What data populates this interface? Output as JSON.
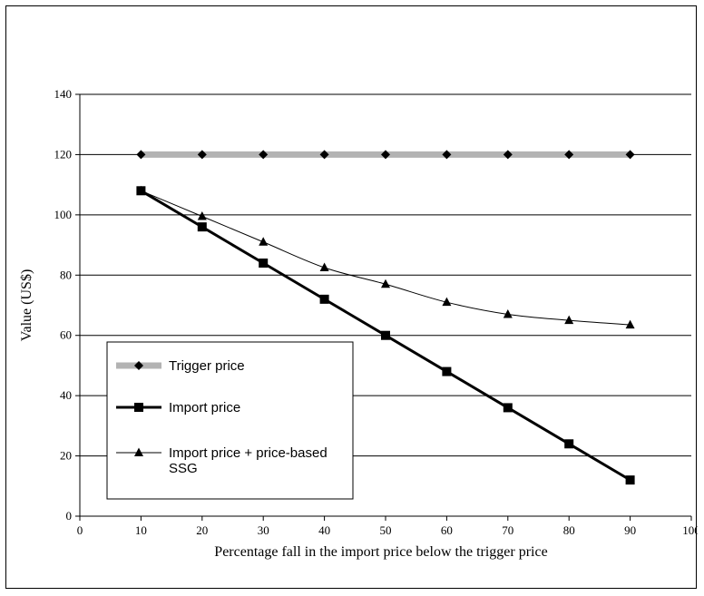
{
  "chart_data": {
    "type": "line",
    "title": "",
    "xlabel": "Percentage fall in the import price below the trigger price",
    "ylabel": "Value (US$)",
    "xlim": [
      0,
      100
    ],
    "ylim": [
      0,
      140
    ],
    "x_ticks": [
      0,
      10,
      20,
      30,
      40,
      50,
      60,
      70,
      80,
      90,
      100
    ],
    "y_ticks": [
      0,
      20,
      40,
      60,
      80,
      100,
      120,
      140
    ],
    "grid": "horizontal",
    "legend_position": "lower-left",
    "x": [
      10,
      20,
      30,
      40,
      50,
      60,
      70,
      80,
      90
    ],
    "series": [
      {
        "name": "Trigger price",
        "marker": "diamond",
        "line_color": "#b3b3b3",
        "values": [
          120,
          120,
          120,
          120,
          120,
          120,
          120,
          120,
          120
        ]
      },
      {
        "name": "Import price",
        "marker": "square",
        "line_color": "#000000",
        "values": [
          108,
          96,
          84,
          72,
          60,
          48,
          36,
          24,
          12
        ]
      },
      {
        "name": "Import price + price-based SSG",
        "marker": "triangle",
        "line_color": "#000000",
        "values": [
          108,
          99.5,
          91,
          82.5,
          77,
          71,
          67,
          65,
          63.5
        ]
      }
    ]
  }
}
